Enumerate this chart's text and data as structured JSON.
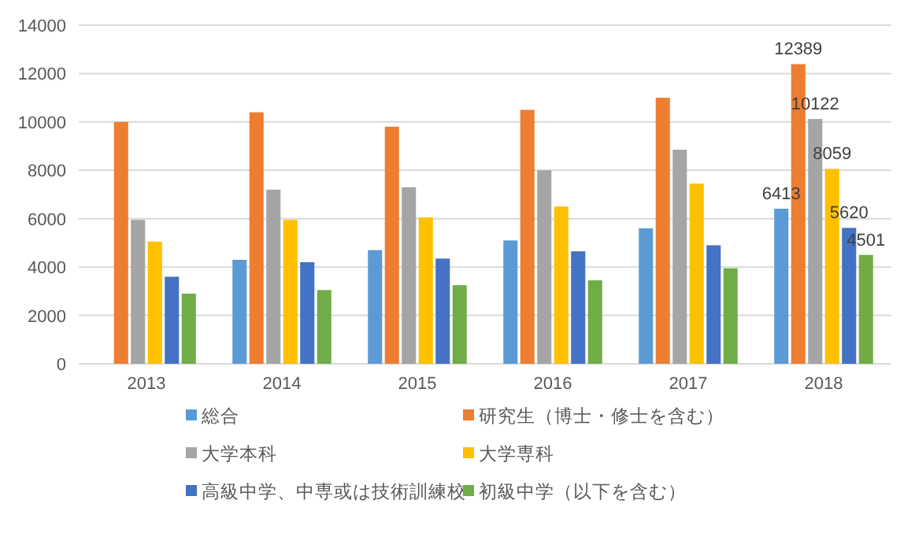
{
  "chart_data": {
    "type": "bar",
    "categories": [
      "2013",
      "2014",
      "2015",
      "2016",
      "2017",
      "2018"
    ],
    "series": [
      {
        "name": "総合",
        "color": "#5b9bd5",
        "values": [
          null,
          4300,
          4700,
          5100,
          5600,
          6413
        ],
        "value_labels": [
          null,
          null,
          null,
          null,
          null,
          "6413"
        ]
      },
      {
        "name": "研究生（博士・修士を含む）",
        "color": "#ed7d31",
        "values": [
          10000,
          10400,
          9800,
          10500,
          11000,
          12389
        ],
        "value_labels": [
          null,
          null,
          null,
          null,
          null,
          "12389"
        ]
      },
      {
        "name": "大学本科",
        "color": "#a5a5a5",
        "values": [
          5950,
          7200,
          7300,
          8000,
          8850,
          10122
        ],
        "value_labels": [
          null,
          null,
          null,
          null,
          null,
          "10122"
        ]
      },
      {
        "name": "大学専科",
        "color": "#ffc000",
        "values": [
          5050,
          5950,
          6050,
          6500,
          7450,
          8059
        ],
        "value_labels": [
          null,
          null,
          null,
          null,
          null,
          "8059"
        ]
      },
      {
        "name": "高級中学、中専或は技術訓練校",
        "color": "#4472c4",
        "values": [
          3600,
          4200,
          4350,
          4650,
          4900,
          5620
        ],
        "value_labels": [
          null,
          null,
          null,
          null,
          null,
          "5620"
        ]
      },
      {
        "name": "初級中学（以下を含む）",
        "color": "#70ad47",
        "values": [
          2900,
          3050,
          3250,
          3450,
          3950,
          4501
        ],
        "value_labels": [
          null,
          null,
          null,
          null,
          null,
          "4501"
        ]
      }
    ],
    "ylim": [
      0,
      14000
    ],
    "yticks": [
      0,
      2000,
      4000,
      6000,
      8000,
      10000,
      12000,
      14000
    ],
    "grid": "y",
    "legend": "bottom"
  }
}
